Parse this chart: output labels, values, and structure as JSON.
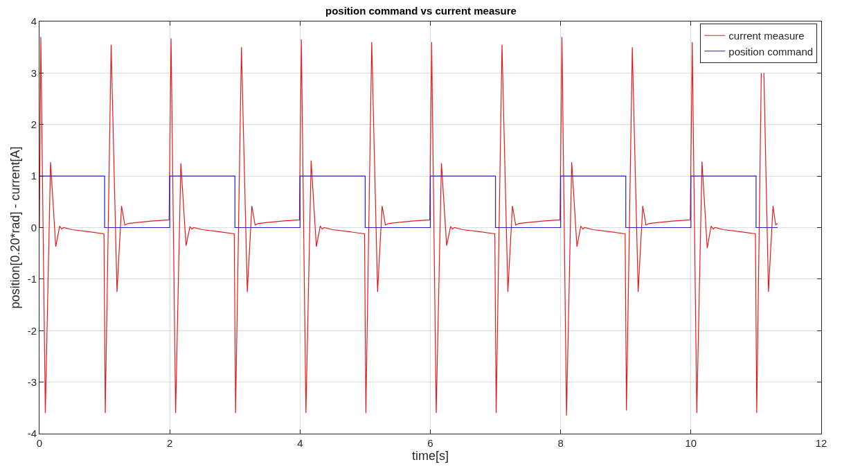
{
  "chart_data": {
    "type": "line",
    "title": "position command vs current measure",
    "xlabel": "time[s]",
    "ylabel": "position[0.20*rad] - current[A]",
    "xlim": [
      0,
      12
    ],
    "xticks": [
      0,
      2,
      4,
      6,
      8,
      10,
      12
    ],
    "ylim": [
      -4,
      4
    ],
    "yticks": [
      -4,
      -3,
      -2,
      -1,
      0,
      1,
      2,
      3,
      4
    ],
    "grid": true,
    "legend": "top right",
    "marker": "none",
    "line_style": "solid",
    "series": [
      {
        "name": "current measure",
        "color": "#e41a1a",
        "type": "line",
        "x": [
          0,
          0.02,
          0.09,
          0.17,
          0.25,
          0.31,
          0.34,
          0.37,
          0.5,
          0.75,
          0.99,
          1.01,
          1.1,
          1.19,
          1.26,
          1.31,
          1.36,
          1.5,
          1.75,
          1.99,
          2.02,
          2.09,
          2.17,
          2.25,
          2.31,
          2.34,
          2.37,
          2.5,
          2.75,
          2.99,
          3.01,
          3.1,
          3.19,
          3.26,
          3.31,
          3.36,
          3.5,
          3.75,
          3.99,
          4.02,
          4.09,
          4.17,
          4.25,
          4.31,
          4.34,
          4.37,
          4.5,
          4.75,
          4.99,
          5.01,
          5.1,
          5.19,
          5.26,
          5.31,
          5.36,
          5.5,
          5.75,
          5.99,
          6.02,
          6.09,
          6.17,
          6.25,
          6.31,
          6.34,
          6.37,
          6.5,
          6.75,
          6.99,
          7.01,
          7.1,
          7.19,
          7.26,
          7.31,
          7.36,
          7.5,
          7.75,
          7.99,
          8.02,
          8.09,
          8.17,
          8.25,
          8.31,
          8.34,
          8.37,
          8.5,
          8.75,
          8.99,
          9.01,
          9.1,
          9.19,
          9.26,
          9.31,
          9.36,
          9.5,
          9.75,
          9.99,
          10.02,
          10.09,
          10.17,
          10.25,
          10.31,
          10.34,
          10.37,
          10.5,
          10.75,
          10.99,
          11.01,
          11.08,
          11.1,
          11.12,
          11.19,
          11.26,
          11.3,
          11.33
        ],
        "values": [
          0,
          3.7,
          -3.6,
          1.27,
          -0.37,
          0.03,
          -0.03,
          0,
          -0.04,
          -0.08,
          -0.12,
          -3.6,
          3.55,
          -1.25,
          0.42,
          0.05,
          0.08,
          0.1,
          0.13,
          0.15,
          3.67,
          -3.6,
          1.25,
          -0.35,
          0.02,
          -0.03,
          0,
          -0.04,
          -0.08,
          -0.12,
          -3.6,
          3.5,
          -1.25,
          0.42,
          0.05,
          0.08,
          0.1,
          0.13,
          0.15,
          3.65,
          -3.6,
          1.3,
          -0.37,
          0.03,
          -0.03,
          0,
          -0.04,
          -0.08,
          -0.12,
          -3.6,
          3.6,
          -1.25,
          0.42,
          0.05,
          0.08,
          0.1,
          0.13,
          0.15,
          3.6,
          -3.6,
          1.25,
          -0.35,
          0.02,
          -0.03,
          0,
          -0.04,
          -0.08,
          -0.12,
          -3.6,
          3.55,
          -1.25,
          0.42,
          0.05,
          0.08,
          0.1,
          0.13,
          0.15,
          3.7,
          -3.65,
          1.27,
          -0.37,
          0.03,
          -0.03,
          0,
          -0.04,
          -0.08,
          -0.12,
          -3.55,
          3.5,
          -1.25,
          0.42,
          0.05,
          0.08,
          0.1,
          0.13,
          0.15,
          3.6,
          -3.6,
          1.28,
          -0.4,
          0.03,
          -0.03,
          0,
          -0.04,
          -0.08,
          -0.12,
          -3.6,
          3.0,
          null,
          3.0,
          -1.25,
          0.42,
          0.05,
          0.08
        ]
      },
      {
        "name": "position command",
        "color": "#2020d0",
        "type": "step",
        "x": [
          0,
          1,
          2,
          3,
          4,
          5,
          6,
          7,
          8,
          9,
          10,
          11,
          11.33
        ],
        "values": [
          1,
          0,
          1,
          0,
          1,
          0,
          1,
          0,
          1,
          0,
          1,
          0,
          0
        ]
      }
    ]
  }
}
